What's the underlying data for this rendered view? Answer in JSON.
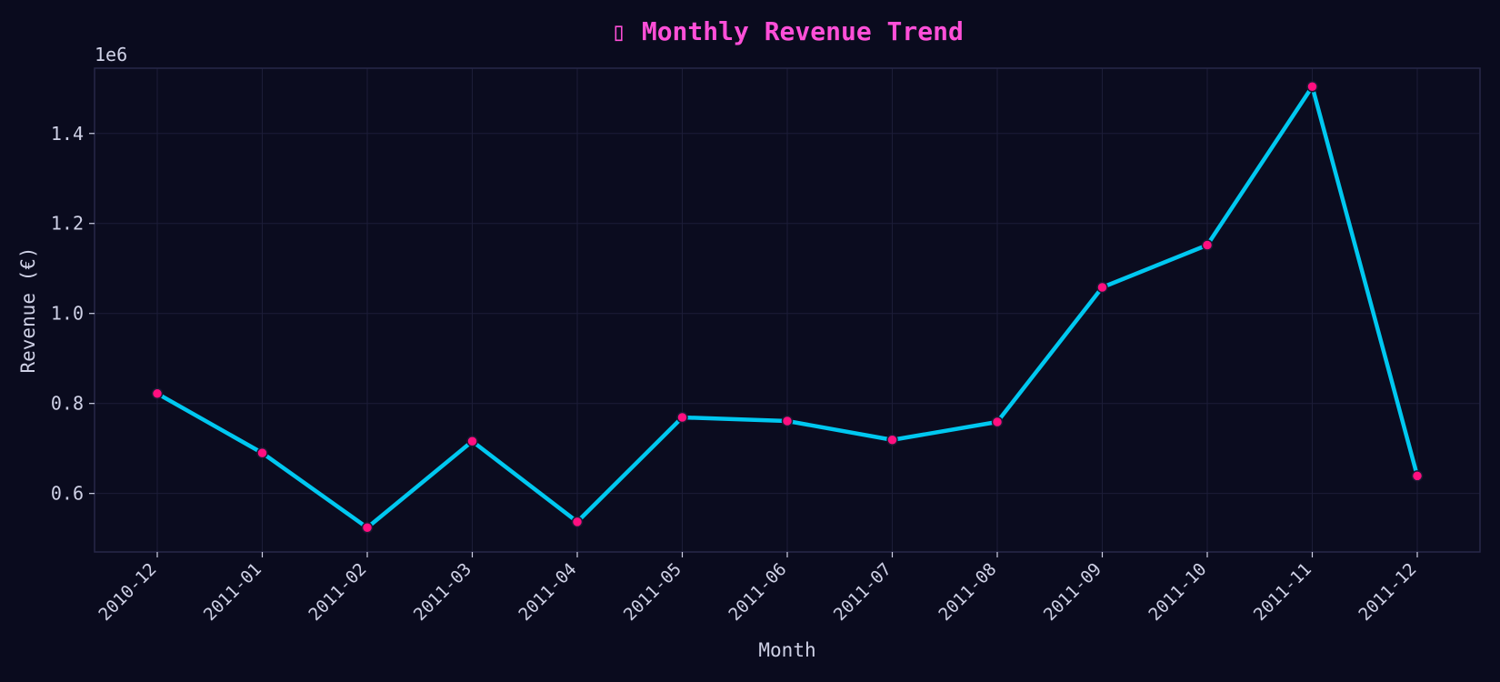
{
  "colors": {
    "background": "#0a0b1e",
    "plot_background": "#0b0c1f",
    "frame": "#272848",
    "grid": "#1c1d38",
    "title": "#ff4fd8",
    "text": "#cfd1e6",
    "line": "#00c8f0",
    "marker_fill": "#ff0f80",
    "marker_edge": "#1a1a33"
  },
  "chart_data": {
    "type": "line",
    "title": "▯ Monthly Revenue Trend",
    "xlabel": "Month",
    "ylabel": "Revenue (€)",
    "y_offset_label": "1e6",
    "categories": [
      "2010-12",
      "2011-01",
      "2011-02",
      "2011-03",
      "2011-04",
      "2011-05",
      "2011-06",
      "2011-07",
      "2011-08",
      "2011-09",
      "2011-10",
      "2011-11",
      "2011-12"
    ],
    "series": [
      {
        "values": [
          0.822,
          0.69,
          0.524,
          0.716,
          0.537,
          0.769,
          0.761,
          0.719,
          0.759,
          1.058,
          1.152,
          1.504,
          0.639
        ]
      }
    ],
    "ylim": [
      0.47,
      1.545
    ],
    "yticks": [
      0.6,
      0.8,
      1.0,
      1.2,
      1.4
    ],
    "ytick_labels": [
      "0.6",
      "0.8",
      "1.0",
      "1.2",
      "1.4"
    ],
    "grid": true,
    "legend": "none"
  }
}
